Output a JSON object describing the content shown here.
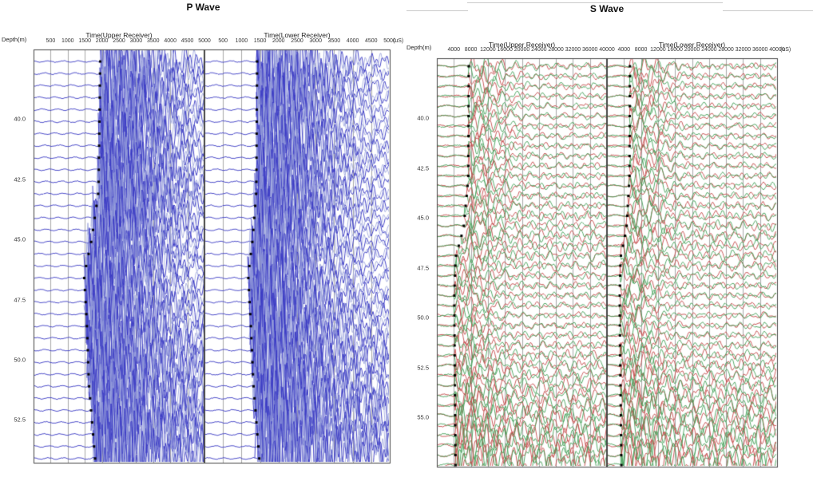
{
  "charts": [
    {
      "id": "p-wave",
      "title": "P Wave",
      "depth_axis_label": "Depth(m)",
      "time_unit_label": "(uS)",
      "time_range_us": [
        0,
        5000
      ],
      "wave_color": "#3b3bc4",
      "wave_color_light": "#97a0da",
      "pick_marker_color": "#000000",
      "depth_tick_labels": [
        "40.0",
        "42.5",
        "45.0",
        "47.5",
        "50.0",
        "52.5"
      ],
      "traces": {
        "first_depth_m": 37.6,
        "depth_step_m": 0.5,
        "count": 34
      },
      "panels": [
        {
          "label": "Time(Upper Receiver)",
          "tick_labels": [
            "500",
            "1000",
            "1500",
            "2000",
            "2500",
            "3000",
            "3500",
            "4000",
            "4500",
            "5000"
          ],
          "first_arrival_picks": {
            "depths_m": [
              37.6,
              43.0,
              45.0,
              46.5,
              48.5,
              51.0,
              54.1
            ],
            "times_us": [
              1950,
              1900,
              1700,
              1480,
              1560,
              1620,
              1800
            ]
          }
        },
        {
          "label": "Time(Lower Receiver)",
          "tick_labels": [
            "500",
            "1000",
            "1500",
            "2000",
            "2500",
            "3000",
            "3500",
            "4000",
            "4500",
            "5000"
          ],
          "first_arrival_picks": {
            "depths_m": [
              37.6,
              43.0,
              45.0,
              46.5,
              48.5,
              51.0,
              54.1
            ],
            "times_us": [
              1420,
              1400,
              1300,
              1180,
              1250,
              1320,
              1480
            ]
          }
        }
      ]
    },
    {
      "id": "s-wave",
      "title": "S Wave",
      "depth_axis_label": "Depth(m)",
      "time_unit_label": "(uS)",
      "time_range_us": [
        0,
        40000
      ],
      "wave_color": "#c44a4a",
      "wave_color2": "#44a058",
      "pick_marker_color": "#000000",
      "depth_tick_labels": [
        "40.0",
        "42.5",
        "45.0",
        "47.5",
        "50.0",
        "52.5",
        "55.0"
      ],
      "traces": {
        "first_depth_m": 37.4,
        "depth_step_m": 0.5,
        "count": 41
      },
      "panels": [
        {
          "label": "Time(Upper Receiver)",
          "tick_labels": [
            "4000",
            "8000",
            "12000",
            "16000",
            "20000",
            "24000",
            "28000",
            "32000",
            "36000",
            "40000"
          ],
          "first_arrival_picks": {
            "depths_m": [
              37.4,
              43.0,
              45.5,
              47.0,
              49.0,
              52.0,
              57.4
            ],
            "times_us": [
              7500,
              7400,
              6300,
              4400,
              4100,
              4200,
              4400
            ]
          }
        },
        {
          "label": "Time(Lower Receiver)",
          "tick_labels": [
            "4000",
            "8000",
            "12000",
            "16000",
            "20000",
            "24000",
            "28000",
            "32000",
            "36000",
            "40000"
          ],
          "first_arrival_picks": {
            "depths_m": [
              37.4,
              43.0,
              45.5,
              47.0,
              49.0,
              52.0,
              57.4
            ],
            "times_us": [
              5400,
              5300,
              4600,
              3200,
              3000,
              3100,
              3400
            ]
          }
        }
      ]
    }
  ],
  "chart_data": {
    "type": "line",
    "description": "Two seismic waveform gathers (trace wiggle plots) versus depth.",
    "charts": [
      "P Wave",
      "S Wave"
    ],
    "p_wave": {
      "x_axis": "Time (uS), 0-5000 per receiver panel, ticks every 500",
      "y_axis": "Depth (m), labels 40.0 to 52.5 every 2.5",
      "panels": [
        "Time(Upper Receiver)",
        "Time(Lower Receiver)"
      ],
      "trace_spacing_m": 0.5
    },
    "s_wave": {
      "x_axis": "Time (uS), 0-40000 per receiver panel, ticks every 4000",
      "y_axis": "Depth (m), labels 40.0 to 55.0 every 2.5",
      "panels": [
        "Time(Upper Receiver)",
        "Time(Lower Receiver)"
      ],
      "trace_spacing_m": 0.5
    }
  }
}
